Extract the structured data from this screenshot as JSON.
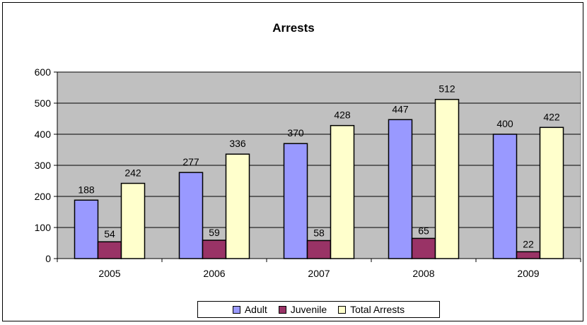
{
  "chart_data": {
    "type": "bar",
    "title": "Arrests",
    "categories": [
      "2005",
      "2006",
      "2007",
      "2008",
      "2009"
    ],
    "series": [
      {
        "name": "Adult",
        "values": [
          188,
          277,
          370,
          447,
          400
        ],
        "color": "#9999ff"
      },
      {
        "name": "Juvenile",
        "values": [
          54,
          59,
          58,
          65,
          22
        ],
        "color": "#993366"
      },
      {
        "name": "Total Arrests",
        "values": [
          242,
          336,
          428,
          512,
          422
        ],
        "color": "#ffffcc"
      }
    ],
    "ylim": [
      0,
      600
    ],
    "yticks": [
      0,
      100,
      200,
      300,
      400,
      500,
      600
    ],
    "grid": true,
    "plot_background": "#c0c0c0",
    "legend_position": "bottom",
    "data_labels": true
  }
}
